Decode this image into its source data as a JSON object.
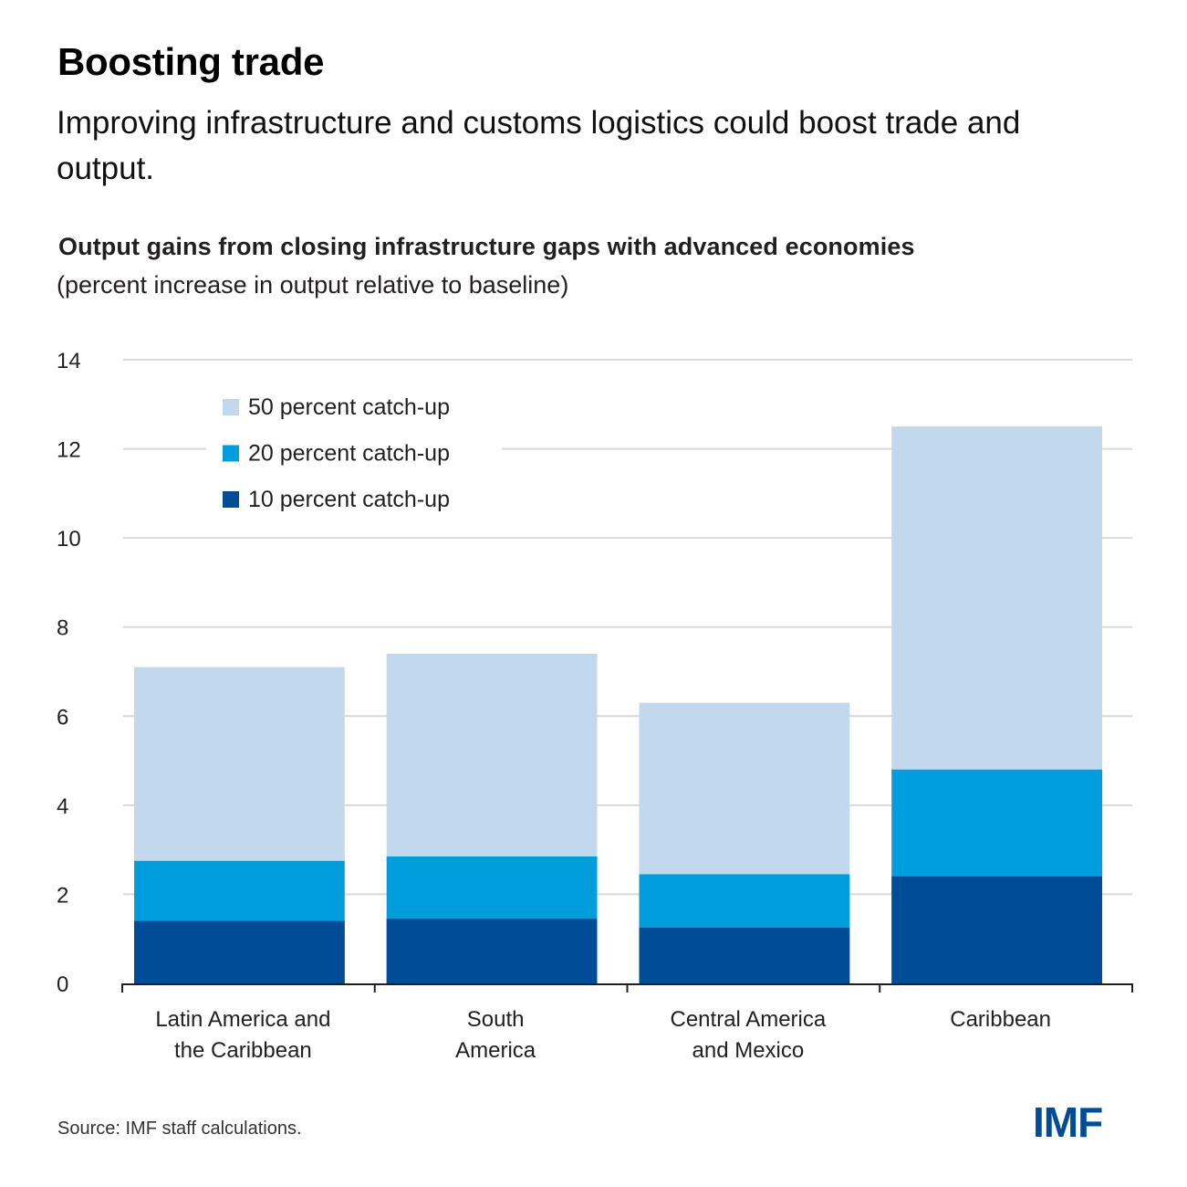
{
  "header": {
    "title": "Boosting trade",
    "subtitle": "Improving infrastructure and customs logistics could boost trade and output."
  },
  "footer": {
    "source": "Source: IMF staff calculations.",
    "logo": "IMF"
  },
  "colors": {
    "light_blue": "#c2d8ec",
    "mid_blue": "#009ddc",
    "dark_blue": "#004c97",
    "gridline": "#d9d9d9",
    "axis": "#231f20",
    "logo": "#004c97"
  },
  "chart_data": {
    "type": "bar",
    "stacked": true,
    "title": "Output gains from closing infrastructure gaps with advanced economies",
    "subtitle": "(percent increase in output relative to baseline)",
    "xlabel": "",
    "ylabel": "",
    "ylim": [
      0,
      14
    ],
    "yticks": [
      0,
      2,
      4,
      6,
      8,
      10,
      12,
      14
    ],
    "grid": true,
    "legend_position": "top-left",
    "categories": [
      [
        "Latin America and",
        "the Caribbean"
      ],
      [
        "South",
        "America"
      ],
      [
        "Central America",
        "and Mexico"
      ],
      [
        "Caribbean"
      ]
    ],
    "category_names": [
      "Latin America and the Caribbean",
      "South America",
      "Central America and Mexico",
      "Caribbean"
    ],
    "series": [
      {
        "name": "10 percent catch-up",
        "color": "#004c97",
        "values": [
          1.4,
          1.45,
          1.25,
          2.4
        ]
      },
      {
        "name": "20 percent catch-up",
        "color": "#009ddc",
        "values": [
          2.75,
          2.85,
          2.45,
          4.8
        ]
      },
      {
        "name": "50 percent catch-up",
        "color": "#c2d8ec",
        "values": [
          7.1,
          7.4,
          6.3,
          12.5
        ]
      }
    ],
    "legend_order": [
      2,
      1,
      0
    ],
    "note": "Segments are overlaid cumulative values: each scenario's total output gain is shown by the top of its segment."
  }
}
